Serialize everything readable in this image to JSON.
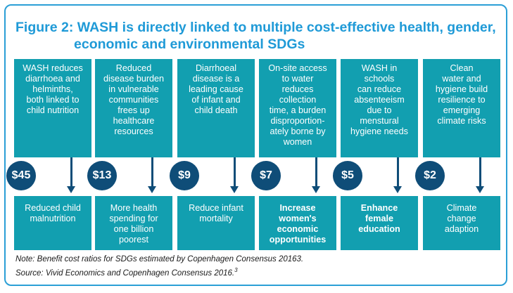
{
  "title": {
    "line1": "Figure 2: WASH is directly linked to multiple cost-effective health, gender,",
    "line2": "economic and environmental SDGs"
  },
  "columns": [
    {
      "top_lines": [
        "WASH reduces",
        "diarrhoea and",
        "helminths,",
        "both linked to",
        "child nutrition"
      ],
      "ratio": "$45",
      "bottom_lines": [
        "Reduced child",
        "malnutrition"
      ],
      "bottom_bold": false
    },
    {
      "top_lines": [
        "Reduced",
        "disease burden",
        "in vulnerable",
        "communities",
        "frees up",
        "healthcare",
        "resources"
      ],
      "ratio": "$13",
      "bottom_lines": [
        "More health",
        "spending for",
        "one billion",
        "poorest"
      ],
      "bottom_bold": false
    },
    {
      "top_lines": [
        "Diarrhoeal",
        "disease is a",
        "leading cause",
        "of infant and",
        "child death"
      ],
      "ratio": "$9",
      "bottom_lines": [
        "Reduce infant",
        "mortality"
      ],
      "bottom_bold": false
    },
    {
      "top_lines": [
        "On-site access",
        "to water",
        "reduces",
        "collection",
        "time, a burden",
        "disproportion-",
        "ately borne by",
        "women"
      ],
      "ratio": "$7",
      "bottom_lines": [
        "Increase",
        "women's",
        "economic",
        "opportunities"
      ],
      "bottom_bold": true
    },
    {
      "top_lines": [
        "WASH in",
        "schools",
        "can reduce",
        "absenteeism",
        "due to",
        "menstural",
        "hygiene needs"
      ],
      "ratio": "$5",
      "bottom_lines": [
        "Enhance",
        "female",
        "education"
      ],
      "bottom_bold": true
    },
    {
      "top_lines": [
        "Clean",
        "water and",
        "hygiene build",
        "resilience to",
        "emerging",
        "climate risks"
      ],
      "ratio": "$2",
      "bottom_lines": [
        "Climate",
        "change",
        "adaption"
      ],
      "bottom_bold": false
    }
  ],
  "note": {
    "line1": "Note: Benefit cost ratios for SDGs estimated by Copenhagen Consensus 20163.",
    "line2": "Source: Vivid Economics and Copenhagen Consensus 2016.",
    "line2_sup": "3"
  }
}
